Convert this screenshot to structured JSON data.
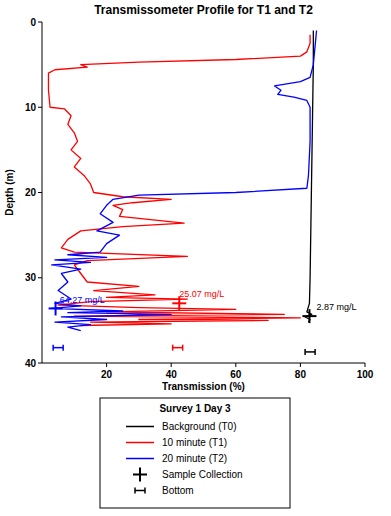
{
  "chart_data": {
    "type": "line",
    "title": "Transmissometer Profile for T1 and T2",
    "x_label": "Transmission (%)",
    "y_label": "Depth (m)",
    "xlim": [
      0,
      100
    ],
    "ylim": [
      0,
      40
    ],
    "xticks": [
      20,
      40,
      60,
      80,
      100
    ],
    "yticks": [
      0,
      10,
      20,
      30,
      40
    ],
    "grid": false,
    "legend": "bottom",
    "legend_title": "Survey 1 Day 3",
    "series": [
      {
        "name": "Background (T0)",
        "color": "#000000",
        "type": "line",
        "x": [
          84,
          84,
          83.8,
          83.6,
          83.4,
          83.2,
          83,
          82.8,
          82,
          83.5,
          81.5,
          83,
          82.5
        ],
        "values": [
          1,
          5,
          10,
          15,
          20,
          25,
          30,
          33,
          34,
          34.3,
          34.6,
          34.9,
          35.2
        ]
      },
      {
        "name": "10 minute (T1)",
        "color": "#ff0000",
        "type": "line",
        "x": [
          83,
          83,
          82,
          80,
          60,
          30,
          12,
          14,
          4,
          2,
          2,
          2.5,
          7,
          9,
          8,
          10,
          11,
          9,
          12,
          10,
          13,
          15,
          16,
          25,
          40,
          28,
          22,
          25,
          24,
          44,
          25,
          12,
          8,
          6,
          10,
          45,
          14,
          10,
          12,
          14,
          30,
          16,
          35,
          20,
          45,
          15,
          5,
          30,
          60,
          20,
          75,
          10,
          80,
          30,
          70,
          15,
          40,
          12
        ],
        "values": [
          1.5,
          2.5,
          3.5,
          4,
          4.4,
          4.7,
          5,
          5.3,
          5.6,
          6,
          8,
          10,
          10.2,
          11,
          12,
          13,
          14,
          15,
          16,
          17,
          18,
          19,
          20,
          20.5,
          20.8,
          21.2,
          21.5,
          22,
          22.8,
          23.6,
          24,
          24.5,
          25.5,
          26.5,
          27,
          27.5,
          28,
          28.5,
          29.5,
          30.5,
          31,
          31.5,
          32,
          32.3,
          32.5,
          32.8,
          33.2,
          33.5,
          33.7,
          34,
          34.3,
          34.5,
          34.7,
          34.9,
          35,
          35.2,
          35.4,
          35.6
        ]
      },
      {
        "name": "20 minute (T2)",
        "color": "#0000ff",
        "type": "line",
        "x": [
          85,
          84.5,
          84,
          83,
          80,
          72,
          74,
          73,
          78,
          82,
          83,
          83,
          82.5,
          82,
          60,
          30,
          22,
          20,
          18,
          22,
          17,
          24,
          20,
          18,
          8,
          20,
          4,
          15,
          3,
          12,
          6,
          8,
          5,
          9,
          4,
          12,
          3,
          25,
          8,
          40,
          6,
          20,
          4,
          15,
          8,
          12
        ],
        "values": [
          1,
          3,
          5,
          6.5,
          7,
          7.5,
          8,
          8.5,
          8.8,
          9.2,
          10,
          14,
          18,
          19.5,
          20,
          20.3,
          20.8,
          21.5,
          22.5,
          23.5,
          24.5,
          25,
          26,
          27,
          27.3,
          27.6,
          27.9,
          28.2,
          28.5,
          29,
          29.5,
          30.5,
          31.5,
          32.5,
          33,
          33.3,
          33.6,
          33.9,
          34.1,
          34.3,
          34.6,
          34.9,
          35.2,
          35.5,
          35.8,
          36.2
        ]
      },
      {
        "name": "Sample Collection",
        "type": "scatter",
        "marker": "plus",
        "color": "#000000",
        "colors": [
          "#0000ff",
          "#ff0000",
          "#000000"
        ],
        "x": [
          4.2,
          42.5,
          82.8
        ],
        "values": [
          33.6,
          33,
          34.5
        ]
      },
      {
        "name": "Bottom",
        "type": "scatter",
        "marker": "bar",
        "color": "#000000",
        "colors": [
          "#0000ff",
          "#ff0000",
          "#000000"
        ],
        "x": [
          5,
          42,
          83
        ],
        "values": [
          38.2,
          38.2,
          38.7
        ]
      }
    ],
    "annotations": [
      {
        "text": "64.27 mg/L",
        "x": 5.5,
        "y": 33,
        "color": "#0000ff"
      },
      {
        "text": "25.07 mg/L",
        "x": 42.5,
        "y": 32.2,
        "color": "#ff0000"
      },
      {
        "text": "2.87 mg/L",
        "x": 85,
        "y": 33.8,
        "color": "#000000"
      }
    ]
  }
}
